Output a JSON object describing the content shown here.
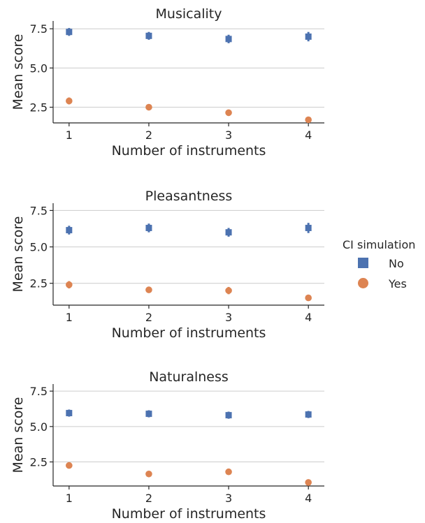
{
  "chart_data": [
    {
      "type": "scatter",
      "title": "Musicality",
      "xlabel": "Number of instruments",
      "ylabel": "Mean score",
      "x": [
        1,
        2,
        3,
        4
      ],
      "xticks": [
        "1",
        "2",
        "3",
        "4"
      ],
      "yticks": [
        "2.5",
        "5.0",
        "7.5"
      ],
      "ylim": [
        1.5,
        8.0
      ],
      "grid": true,
      "series": [
        {
          "name": "No",
          "values": [
            7.3,
            7.05,
            6.85,
            7.0
          ],
          "errors": [
            0.25,
            0.25,
            0.27,
            0.3
          ],
          "color": "#4c72b0",
          "marker": "square"
        },
        {
          "name": "Yes",
          "values": [
            2.9,
            2.5,
            2.15,
            1.7
          ],
          "errors": [
            0.22,
            0.15,
            0.2,
            0.12
          ],
          "color": "#dd8452",
          "marker": "circle"
        }
      ]
    },
    {
      "type": "scatter",
      "title": "Pleasantness",
      "xlabel": "Number of instruments",
      "ylabel": "Mean score",
      "x": [
        1,
        2,
        3,
        4
      ],
      "xticks": [
        "1",
        "2",
        "3",
        "4"
      ],
      "yticks": [
        "2.5",
        "5.0",
        "7.5"
      ],
      "ylim": [
        1.0,
        8.0
      ],
      "grid": true,
      "series": [
        {
          "name": "No",
          "values": [
            6.15,
            6.3,
            6.0,
            6.3
          ],
          "errors": [
            0.3,
            0.3,
            0.3,
            0.35
          ],
          "color": "#4c72b0",
          "marker": "square"
        },
        {
          "name": "Yes",
          "values": [
            2.4,
            2.05,
            2.0,
            1.5
          ],
          "errors": [
            0.25,
            0.18,
            0.25,
            0.12
          ],
          "color": "#dd8452",
          "marker": "circle"
        }
      ]
    },
    {
      "type": "scatter",
      "title": "Naturalness",
      "xlabel": "Number of instruments",
      "ylabel": "Mean score",
      "x": [
        1,
        2,
        3,
        4
      ],
      "xticks": [
        "1",
        "2",
        "3",
        "4"
      ],
      "yticks": [
        "2.5",
        "5.0",
        "7.5"
      ],
      "ylim": [
        0.8,
        8.0
      ],
      "grid": true,
      "series": [
        {
          "name": "No",
          "values": [
            5.95,
            5.9,
            5.8,
            5.85
          ],
          "errors": [
            0.25,
            0.25,
            0.25,
            0.25
          ],
          "color": "#4c72b0",
          "marker": "square"
        },
        {
          "name": "Yes",
          "values": [
            2.25,
            1.65,
            1.8,
            1.05
          ],
          "errors": [
            0.2,
            0.15,
            0.18,
            0.1
          ],
          "color": "#dd8452",
          "marker": "circle"
        }
      ]
    }
  ],
  "legend": {
    "title": "CI simulation",
    "placement": "right",
    "items": [
      {
        "label": "No",
        "color": "#4c72b0",
        "marker": "square"
      },
      {
        "label": "Yes",
        "color": "#dd8452",
        "marker": "circle"
      }
    ]
  }
}
